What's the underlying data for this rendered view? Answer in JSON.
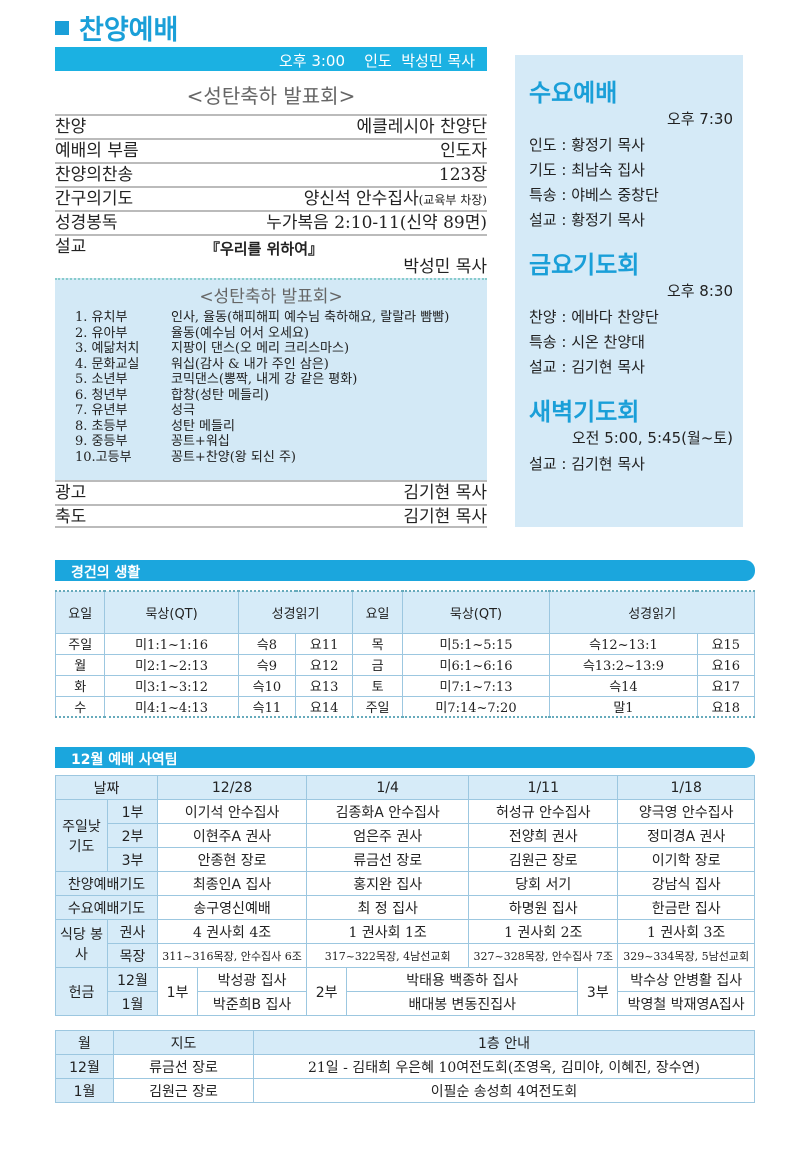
{
  "header": {
    "title": "찬양예배",
    "time_bar": "오후 3:00    인도  박성민 목사",
    "subtitle": "<성탄축하 발표회>"
  },
  "order": [
    {
      "item": "찬양",
      "value": "에클레시아 찬양단"
    },
    {
      "item": "예배의 부름",
      "value": "인도자"
    },
    {
      "item": "찬양의찬송",
      "value": "123장"
    },
    {
      "item": "간구의기도",
      "value": "양신석 안수집사",
      "note": "(교육부 차장)"
    },
    {
      "item": "성경봉독",
      "value": "누가복음 2:10-11(신약 89면)"
    }
  ],
  "sermon": {
    "item": "설교",
    "title": "『우리를 위하여』",
    "preacher": "박성민 목사"
  },
  "program": {
    "title": "<성탄축하 발표회>",
    "items": [
      {
        "dept": "1. 유치부",
        "content": "인사, 율동(해피해피 예수님 축하해요, 랄랄라 빰빰)"
      },
      {
        "dept": "2. 유아부",
        "content": "율동(예수님 어서 오세요)"
      },
      {
        "dept": "3. 예닮처치",
        "content": "지팡이 댄스(오 메리 크리스마스)"
      },
      {
        "dept": "4. 문화교실",
        "content": "워십(감사 & 내가 주인 삼은)"
      },
      {
        "dept": "5. 소년부",
        "content": "코믹댄스(뽕짝, 내게 강 같은 평화)"
      },
      {
        "dept": "6. 청년부",
        "content": "합창(성탄 메들리)"
      },
      {
        "dept": "7. 유년부",
        "content": "성극"
      },
      {
        "dept": "8. 초등부",
        "content": "성탄 메들리"
      },
      {
        "dept": "9. 중등부",
        "content": "꽁트+워십"
      },
      {
        "dept": "10.고등부",
        "content": "꽁트+찬양(왕 되신 주)"
      }
    ]
  },
  "closing": [
    {
      "item": "광고",
      "value": "김기현 목사"
    },
    {
      "item": "축도",
      "value": "김기현 목사"
    }
  ],
  "right": {
    "wed": {
      "title": "수요예배",
      "time": "오후 7:30",
      "lines": [
        "인도 : 황정기 목사",
        "기도 : 최남숙 집사",
        "특송 : 야베스 중창단",
        "설교 : 황정기 목사"
      ]
    },
    "fri": {
      "title": "금요기도회",
      "time": "오후 8:30",
      "lines": [
        "찬양 : 에바다 찬양단",
        "특송 : 시온 찬양대",
        "설교 : 김기현 목사"
      ]
    },
    "dawn": {
      "title": "새벽기도회",
      "time": "오전 5:00, 5:45(월~토)",
      "lines": [
        "설교 : 김기현 목사"
      ]
    }
  },
  "devotion": {
    "title": "경건의 생활",
    "headers": [
      "요일",
      "묵상(QT)",
      "성경읽기",
      "요일",
      "묵상(QT)",
      "성경읽기"
    ],
    "rows": [
      [
        "주일",
        "미1:1~1:16",
        "슥8",
        "요11",
        "목",
        "미5:1~5:15",
        "슥12~13:1",
        "요15"
      ],
      [
        "월",
        "미2:1~2:13",
        "슥9",
        "요12",
        "금",
        "미6:1~6:16",
        "슥13:2~13:9",
        "요16"
      ],
      [
        "화",
        "미3:1~3:12",
        "슥10",
        "요13",
        "토",
        "미7:1~7:13",
        "슥14",
        "요17"
      ],
      [
        "수",
        "미4:1~4:13",
        "슥11",
        "요14",
        "주일",
        "미7:14~7:20",
        "말1",
        "요18"
      ]
    ]
  },
  "team": {
    "title": "12월 예배 사역팀",
    "date_label": "날짜",
    "dates": [
      "12/28",
      "1/4",
      "1/11",
      "1/18"
    ],
    "sunday_label": "주일낮 기도",
    "sunday": [
      {
        "part": "1부",
        "names": [
          "이기석 안수집사",
          "김종화A 안수집사",
          "허성규 안수집사",
          "양극영 안수집사"
        ]
      },
      {
        "part": "2부",
        "names": [
          "이현주A 권사",
          "엄은주 권사",
          "전양희 권사",
          "정미경A 권사"
        ]
      },
      {
        "part": "3부",
        "names": [
          "안종현 장로",
          "류금선 장로",
          "김원근 장로",
          "이기학 장로"
        ]
      }
    ],
    "praise": {
      "label": "찬양예배기도",
      "names": [
        "최종인A 집사",
        "홍지완 집사",
        "당회 서기",
        "강남식 집사"
      ]
    },
    "wed": {
      "label": "수요예배기도",
      "names": [
        "송구영신예배",
        "최 정 집사",
        "하명원 집사",
        "한금란 집사"
      ]
    },
    "kitchen_label": "식당 봉사",
    "kitchen": [
      {
        "part": "권사",
        "names": [
          "4 권사회 4조",
          "1 권사회 1조",
          "1 권사회 2조",
          "1 권사회 3조"
        ]
      },
      {
        "part": "목장",
        "names": [
          "311~316목장, 안수집사 6조",
          "317~322목장, 4남선교회",
          "327~328목장, 안수집사 7조",
          "329~334목장, 5남선교회"
        ]
      }
    ],
    "offering_label": "헌금",
    "months": [
      "12월",
      "1월"
    ],
    "offering": [
      {
        "part": "1부",
        "names": [
          "박성광 집사",
          "박준희B 집사"
        ]
      },
      {
        "part": "2부",
        "names": [
          "박태용 백종하 집사",
          "배대봉 변동진집사"
        ]
      },
      {
        "part": "3부",
        "names": [
          "박수상 안병활 집사",
          "박영철 박재영A집사"
        ]
      }
    ]
  },
  "guide": {
    "headers": [
      "월",
      "지도",
      "1층 안내"
    ],
    "rows": [
      [
        "12월",
        "류금선 장로",
        "21일 - 김태희 우은혜 10여전도회(조영옥, 김미야, 이혜진, 장수연)"
      ],
      [
        "1월",
        "김원근 장로",
        "이필순 송성희 4여전도회"
      ]
    ]
  },
  "colors": {
    "accent": "#1a9fd8",
    "light": "#d5eaf7"
  }
}
